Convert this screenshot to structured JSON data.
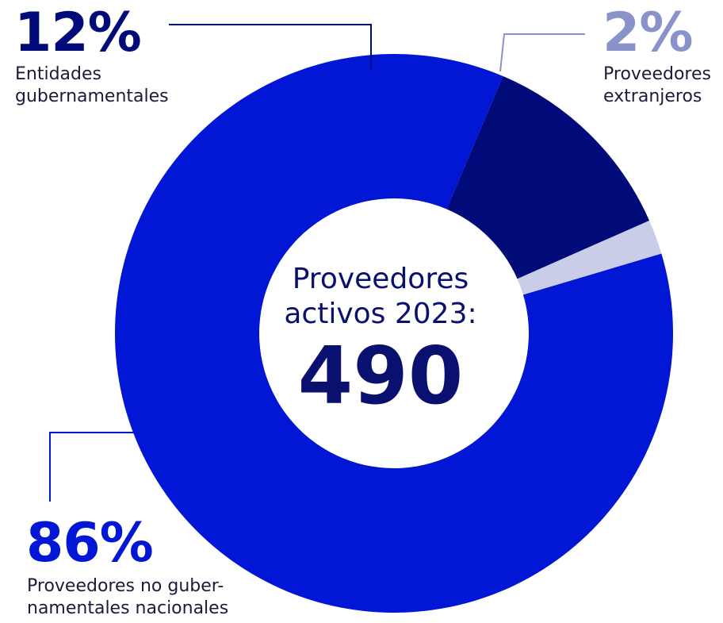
{
  "colors": {
    "dark_navy": "#000a78",
    "blue": "#0216d6",
    "light": "#c9cde8",
    "label_light": "#8a93c9",
    "center_text": "#0a1070"
  },
  "center": {
    "title_line1": "Proveedores",
    "title_line2": "activos 2023:",
    "value": "490"
  },
  "chart_data": {
    "type": "pie",
    "donut": true,
    "total": 490,
    "slices": [
      {
        "label_line1": "Proveedores no guber-",
        "label_line2": "namentales nacionales",
        "value": 86,
        "value_text": "86%",
        "color": "#0216d6"
      },
      {
        "label_line1": "Entidades",
        "label_line2": "gubernamentales",
        "value": 12,
        "value_text": "12%",
        "color": "#000a78"
      },
      {
        "label_line1": "Proveedores",
        "label_line2": "extranjeros",
        "value": 2,
        "value_text": "2%",
        "color": "#c9cde8"
      }
    ]
  }
}
